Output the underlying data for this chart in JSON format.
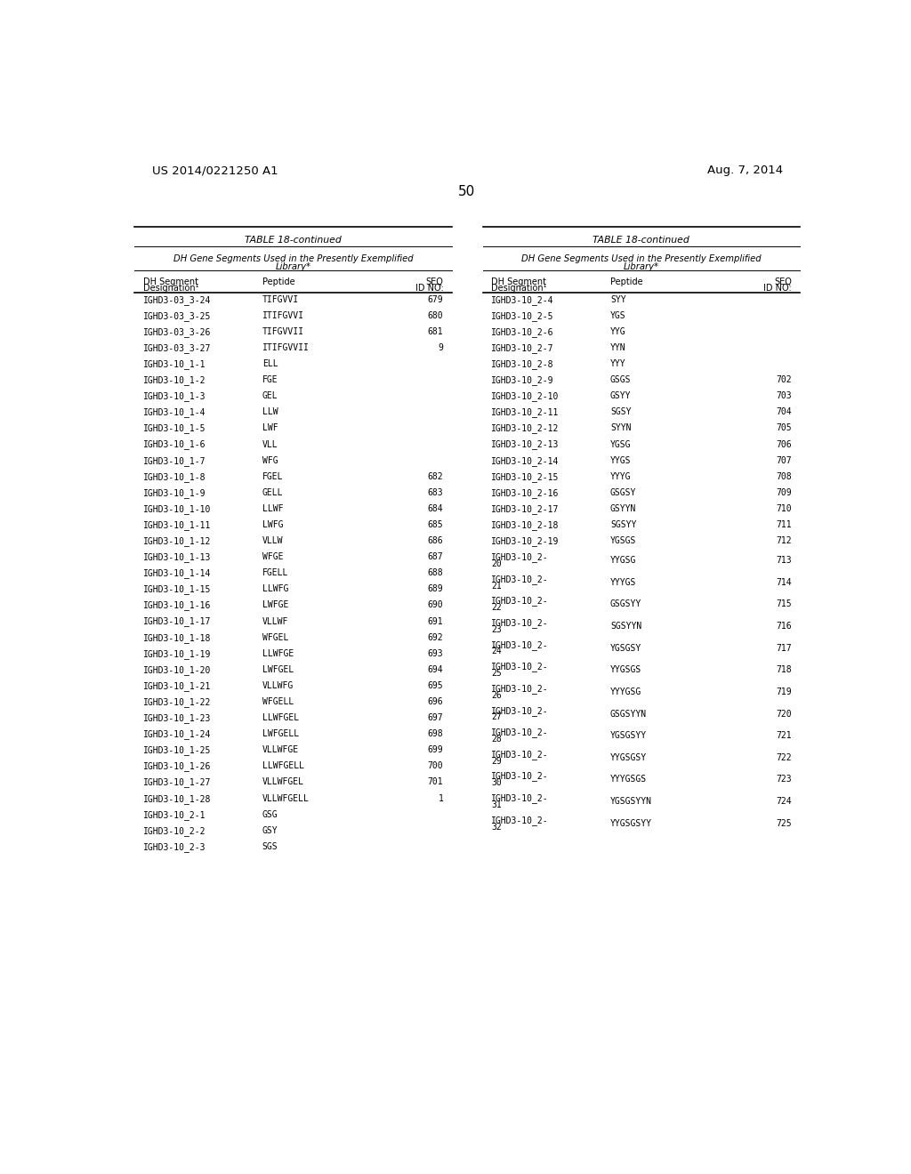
{
  "page_number": "50",
  "patent_left": "US 2014/0221250 A1",
  "patent_right": "Aug. 7, 2014",
  "table_title": "TABLE 18-continued",
  "table_header_line1": "DH Gene Segments Used in the Presently Exemplified",
  "table_header_line2": "Library*",
  "col_header_0a": "DH Segment",
  "col_header_0b": "Designation¹",
  "col_header_1": "Peptide",
  "col_header_2a": "SEQ",
  "col_header_2b": "ID NO:",
  "left_table": [
    [
      "IGHD3-03_3-24",
      "TIFGVVI",
      "679"
    ],
    [
      "IGHD3-03_3-25",
      "ITIFGVVI",
      "680"
    ],
    [
      "IGHD3-03_3-26",
      "TIFGVVII",
      "681"
    ],
    [
      "IGHD3-03_3-27",
      "ITIFGVVII",
      "9"
    ],
    [
      "IGHD3-10_1-1",
      "ELL",
      ""
    ],
    [
      "IGHD3-10_1-2",
      "FGE",
      ""
    ],
    [
      "IGHD3-10_1-3",
      "GEL",
      ""
    ],
    [
      "IGHD3-10_1-4",
      "LLW",
      ""
    ],
    [
      "IGHD3-10_1-5",
      "LWF",
      ""
    ],
    [
      "IGHD3-10_1-6",
      "VLL",
      ""
    ],
    [
      "IGHD3-10_1-7",
      "WFG",
      ""
    ],
    [
      "IGHD3-10_1-8",
      "FGEL",
      "682"
    ],
    [
      "IGHD3-10_1-9",
      "GELL",
      "683"
    ],
    [
      "IGHD3-10_1-10",
      "LLWF",
      "684"
    ],
    [
      "IGHD3-10_1-11",
      "LWFG",
      "685"
    ],
    [
      "IGHD3-10_1-12",
      "VLLW",
      "686"
    ],
    [
      "IGHD3-10_1-13",
      "WFGE",
      "687"
    ],
    [
      "IGHD3-10_1-14",
      "FGELL",
      "688"
    ],
    [
      "IGHD3-10_1-15",
      "LLWFG",
      "689"
    ],
    [
      "IGHD3-10_1-16",
      "LWFGE",
      "690"
    ],
    [
      "IGHD3-10_1-17",
      "VLLWF",
      "691"
    ],
    [
      "IGHD3-10_1-18",
      "WFGEL",
      "692"
    ],
    [
      "IGHD3-10_1-19",
      "LLWFGE",
      "693"
    ],
    [
      "IGHD3-10_1-20",
      "LWFGEL",
      "694"
    ],
    [
      "IGHD3-10_1-21",
      "VLLWFG",
      "695"
    ],
    [
      "IGHD3-10_1-22",
      "WFGELL",
      "696"
    ],
    [
      "IGHD3-10_1-23",
      "LLWFGEL",
      "697"
    ],
    [
      "IGHD3-10_1-24",
      "LWFGELL",
      "698"
    ],
    [
      "IGHD3-10_1-25",
      "VLLWFGE",
      "699"
    ],
    [
      "IGHD3-10_1-26",
      "LLWFGELL",
      "700"
    ],
    [
      "IGHD3-10_1-27",
      "VLLWFGEL",
      "701"
    ],
    [
      "IGHD3-10_1-28",
      "VLLWFGELL",
      "1"
    ],
    [
      "IGHD3-10_2-1",
      "GSG",
      ""
    ],
    [
      "IGHD3-10_2-2",
      "GSY",
      ""
    ],
    [
      "IGHD3-10_2-3",
      "SGS",
      ""
    ]
  ],
  "right_table": [
    [
      "IGHD3-10_2-4",
      "SYY",
      "",
      false
    ],
    [
      "IGHD3-10_2-5",
      "YGS",
      "",
      false
    ],
    [
      "IGHD3-10_2-6",
      "YYG",
      "",
      false
    ],
    [
      "IGHD3-10_2-7",
      "YYN",
      "",
      false
    ],
    [
      "IGHD3-10_2-8",
      "YYY",
      "",
      false
    ],
    [
      "IGHD3-10_2-9",
      "GSGS",
      "702",
      false
    ],
    [
      "IGHD3-10_2-10",
      "GSYY",
      "703",
      false
    ],
    [
      "IGHD3-10_2-11",
      "SGSY",
      "704",
      false
    ],
    [
      "IGHD3-10_2-12",
      "SYYN",
      "705",
      false
    ],
    [
      "IGHD3-10_2-13",
      "YGSG",
      "706",
      false
    ],
    [
      "IGHD3-10_2-14",
      "YYGS",
      "707",
      false
    ],
    [
      "IGHD3-10_2-15",
      "YYYG",
      "708",
      false
    ],
    [
      "IGHD3-10_2-16",
      "GSGSY",
      "709",
      false
    ],
    [
      "IGHD3-10_2-17",
      "GSYYN",
      "710",
      false
    ],
    [
      "IGHD3-10_2-18",
      "SGSYY",
      "711",
      false
    ],
    [
      "IGHD3-10_2-19",
      "YGSGS",
      "712",
      false
    ],
    [
      "IGHD3-10_2-20",
      "YYGSG",
      "713",
      true
    ],
    [
      "IGHD3-10_2-21",
      "YYYGS",
      "714",
      true
    ],
    [
      "IGHD3-10_2-22",
      "GSGSYY",
      "715",
      true
    ],
    [
      "IGHD3-10_2-23",
      "SGSYYN",
      "716",
      true
    ],
    [
      "IGHD3-10_2-24",
      "YGSGSY",
      "717",
      true
    ],
    [
      "IGHD3-10_2-25",
      "YYGSGS",
      "718",
      true
    ],
    [
      "IGHD3-10_2-26",
      "YYYGSG",
      "719",
      true
    ],
    [
      "IGHD3-10_2-27",
      "GSGSYYN",
      "720",
      true
    ],
    [
      "IGHD3-10_2-28",
      "YGSGSYY",
      "721",
      true
    ],
    [
      "IGHD3-10_2-29",
      "YYGSGSY",
      "722",
      true
    ],
    [
      "IGHD3-10_2-30",
      "YYYGSGS",
      "723",
      true
    ],
    [
      "IGHD3-10_2-31",
      "YGSGSYYN",
      "724",
      true
    ],
    [
      "IGHD3-10_2-32",
      "YYGSGSYY",
      "725",
      true
    ]
  ],
  "bg_color": "#ffffff",
  "text_color": "#000000"
}
